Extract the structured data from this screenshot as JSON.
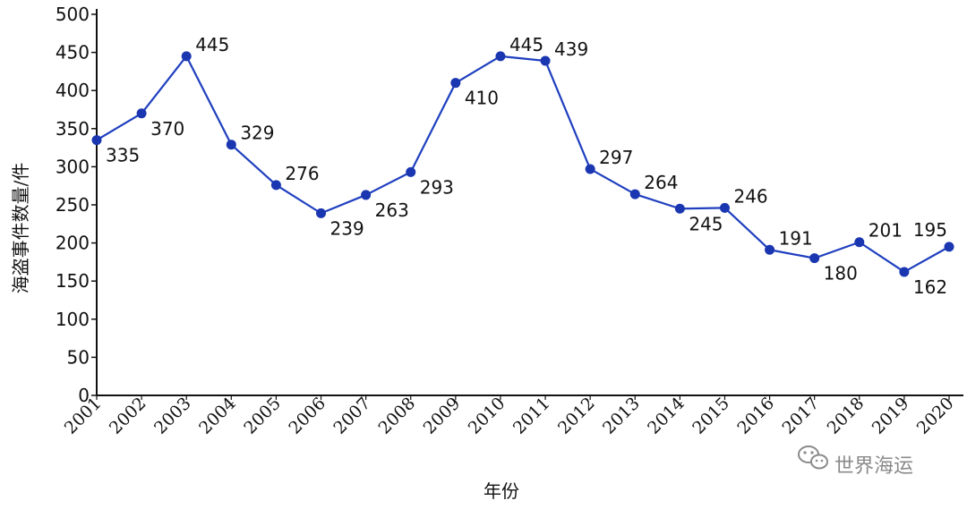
{
  "chart_data": {
    "type": "line",
    "title": "",
    "xlabel": "年份",
    "ylabel": "海盗事件数量/件",
    "x": [
      "2001",
      "2002",
      "2003",
      "2004",
      "2005",
      "2006",
      "2007",
      "2008",
      "2009",
      "2010",
      "2011",
      "2012",
      "2013",
      "2014",
      "2015",
      "2016",
      "2017",
      "2018",
      "2019",
      "2020"
    ],
    "series": [
      {
        "values": [
          335,
          370,
          445,
          329,
          276,
          239,
          263,
          293,
          410,
          445,
          439,
          297,
          264,
          245,
          246,
          191,
          180,
          201,
          162,
          195
        ]
      }
    ],
    "ylim": [
      0,
      500
    ],
    "yticks": [
      0,
      50,
      100,
      150,
      200,
      250,
      300,
      350,
      400,
      450,
      500
    ],
    "grid": false,
    "line_color": "#1f3fbf",
    "marker_color": "#1a36b0"
  },
  "watermark": {
    "text": "世界海运",
    "icon": "wechat-icon"
  }
}
